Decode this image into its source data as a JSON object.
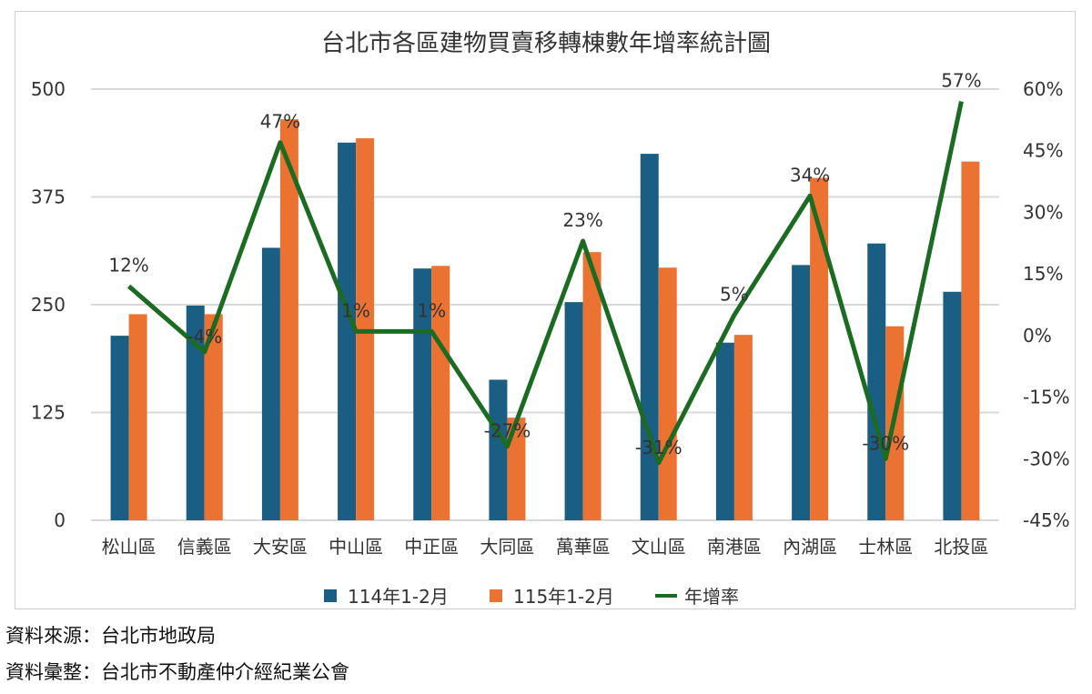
{
  "chart_data": {
    "type": "bar+line",
    "title": "台北市各區建物買賣移轉棟數年增率統計圖",
    "categories": [
      "松山區",
      "信義區",
      "大安區",
      "中山區",
      "中正區",
      "大同區",
      "萬華區",
      "文山區",
      "南港區",
      "內湖區",
      "士林區",
      "北投區"
    ],
    "series": [
      {
        "name": "114年1-2月",
        "type": "bar",
        "axis": "left",
        "color": "#1b5e83",
        "values": [
          214,
          249,
          316,
          438,
          292,
          163,
          253,
          425,
          206,
          296,
          321,
          265
        ]
      },
      {
        "name": "115年1-2月",
        "type": "bar",
        "axis": "left",
        "color": "#ec7232",
        "values": [
          239,
          239,
          465,
          443,
          295,
          119,
          311,
          293,
          215,
          397,
          225,
          416
        ]
      },
      {
        "name": "年增率",
        "type": "line",
        "axis": "right",
        "color": "#1b6b22",
        "values": [
          12,
          -4,
          47,
          1,
          1,
          -27,
          23,
          -31,
          5,
          34,
          -30,
          57
        ],
        "labels": [
          "12%",
          "-4%",
          "47%",
          "1%",
          "1%",
          "-27%",
          "23%",
          "-31%",
          "5%",
          "34%",
          "-30%",
          "57%"
        ]
      }
    ],
    "left_axis": {
      "ylim": [
        0,
        500
      ],
      "ticks": [
        0,
        125,
        250,
        375,
        500
      ],
      "tick_labels": [
        "0",
        "125",
        "250",
        "375",
        "500"
      ]
    },
    "right_axis": {
      "ylim": [
        -45,
        60
      ],
      "ticks": [
        -45,
        -30,
        -15,
        0,
        15,
        30,
        45,
        60
      ],
      "tick_labels": [
        "-45%",
        "-30%",
        "-15%",
        "0%",
        "15%",
        "30%",
        "45%",
        "60%"
      ]
    },
    "grid": true,
    "legend": "bottom"
  },
  "footer": {
    "source": "資料來源：台北市地政局",
    "compiled": "資料彙整：台北市不動產仲介經紀業公會"
  }
}
